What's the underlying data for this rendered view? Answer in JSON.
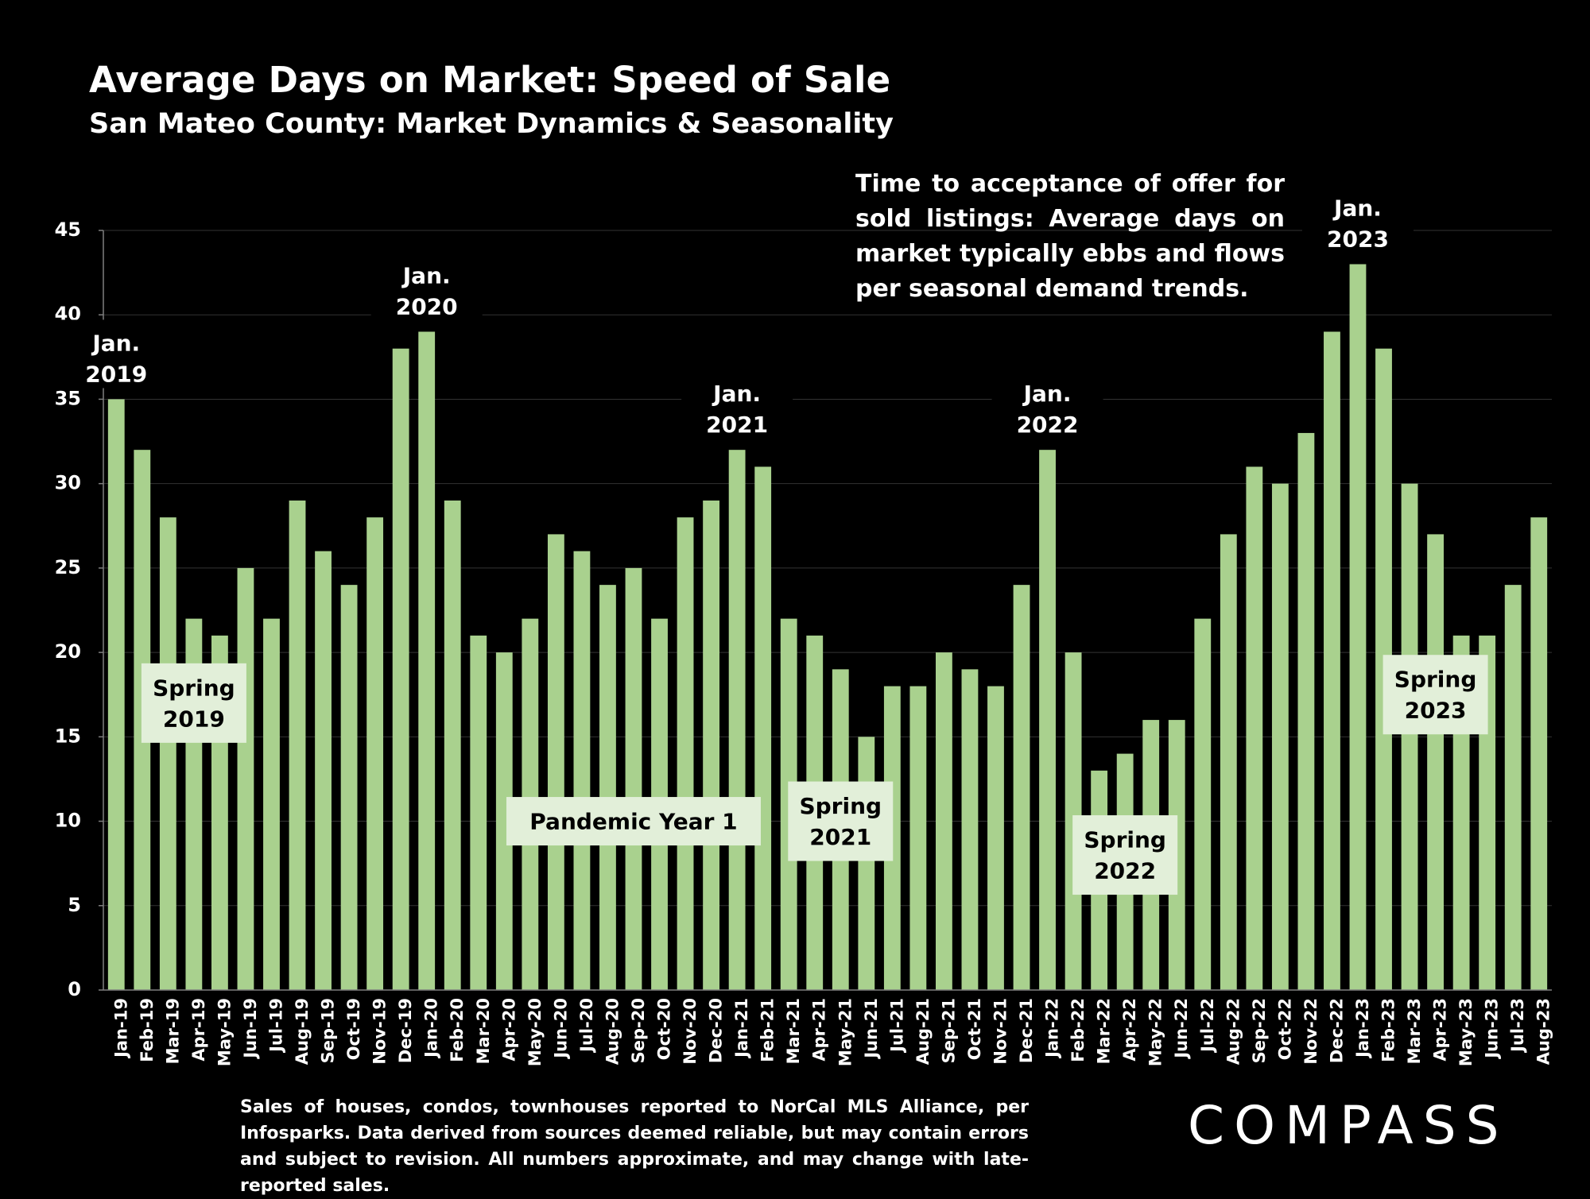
{
  "header": {
    "title": "Average Days on Market:  Speed of Sale",
    "subtitle": "San Mateo County: Market Dynamics & Seasonality"
  },
  "note": "Time to acceptance of offer for sold listings: Average days on market typically ebbs and flows per seasonal demand trends.",
  "footnote": "Sales of houses, condos, townhouses reported to NorCal MLS Alliance, per Infosparks. Data derived from sources deemed reliable, but may contain errors and subject to revision. All numbers approximate, and may change with late-reported sales.",
  "logo": "COMPASS",
  "colors": {
    "bar": "#a9d18e",
    "label_box": "#e2efd9",
    "background": "#000000"
  },
  "chart_data": {
    "type": "bar",
    "categories": [
      "Jan-19",
      "Feb-19",
      "Mar-19",
      "Apr-19",
      "May-19",
      "Jun-19",
      "Jul-19",
      "Aug-19",
      "Sep-19",
      "Oct-19",
      "Nov-19",
      "Dec-19",
      "Jan-20",
      "Feb-20",
      "Mar-20",
      "Apr-20",
      "May-20",
      "Jun-20",
      "Jul-20",
      "Aug-20",
      "Sep-20",
      "Oct-20",
      "Nov-20",
      "Dec-20",
      "Jan-21",
      "Feb-21",
      "Mar-21",
      "Apr-21",
      "May-21",
      "Jun-21",
      "Jul-21",
      "Aug-21",
      "Sep-21",
      "Oct-21",
      "Nov-21",
      "Dec-21",
      "Jan-22",
      "Feb-22",
      "Mar-22",
      "Apr-22",
      "May-22",
      "Jun-22",
      "Jul-22",
      "Aug-22",
      "Sep-22",
      "Oct-22",
      "Nov-22",
      "Dec-22",
      "Jan-23",
      "Feb-23",
      "Mar-23",
      "Apr-23",
      "May-23",
      "Jun-23",
      "Jul-23",
      "Aug-23"
    ],
    "values": [
      35,
      32,
      28,
      22,
      21,
      25,
      22,
      29,
      26,
      24,
      28,
      38,
      39,
      29,
      21,
      20,
      22,
      27,
      26,
      24,
      25,
      22,
      28,
      29,
      32,
      31,
      22,
      21,
      19,
      15,
      18,
      18,
      20,
      19,
      18,
      24,
      32,
      20,
      13,
      14,
      16,
      16,
      22,
      27,
      31,
      30,
      33,
      39,
      43,
      38,
      30,
      27,
      21,
      21,
      24,
      28
    ],
    "ylim": [
      0,
      45
    ],
    "yticks": [
      0,
      5,
      10,
      15,
      20,
      25,
      30,
      35,
      40,
      45
    ],
    "grid": true,
    "annotations": [
      {
        "lines": [
          "Jan.",
          "2019"
        ],
        "category": "Jan-19"
      },
      {
        "lines": [
          "Jan.",
          "2020"
        ],
        "category": "Jan-20"
      },
      {
        "lines": [
          "Jan.",
          "2021"
        ],
        "category": "Jan-21"
      },
      {
        "lines": [
          "Jan.",
          "2022"
        ],
        "category": "Jan-22"
      },
      {
        "lines": [
          "Jan.",
          "2023"
        ],
        "category": "Jan-23"
      }
    ],
    "period_labels": [
      {
        "lines": [
          "Spring",
          "2019"
        ],
        "category": "Apr-19",
        "y": 17
      },
      {
        "lines": [
          "Pandemic Year 1"
        ],
        "category": "Sep-20",
        "y": 10
      },
      {
        "lines": [
          "Spring",
          "2021"
        ],
        "category": "May-21",
        "y": 10
      },
      {
        "lines": [
          "Spring",
          "2022"
        ],
        "category": "Apr-22",
        "y": 8
      },
      {
        "lines": [
          "Spring",
          "2023"
        ],
        "category": "Apr-23",
        "y": 17.5
      }
    ]
  }
}
